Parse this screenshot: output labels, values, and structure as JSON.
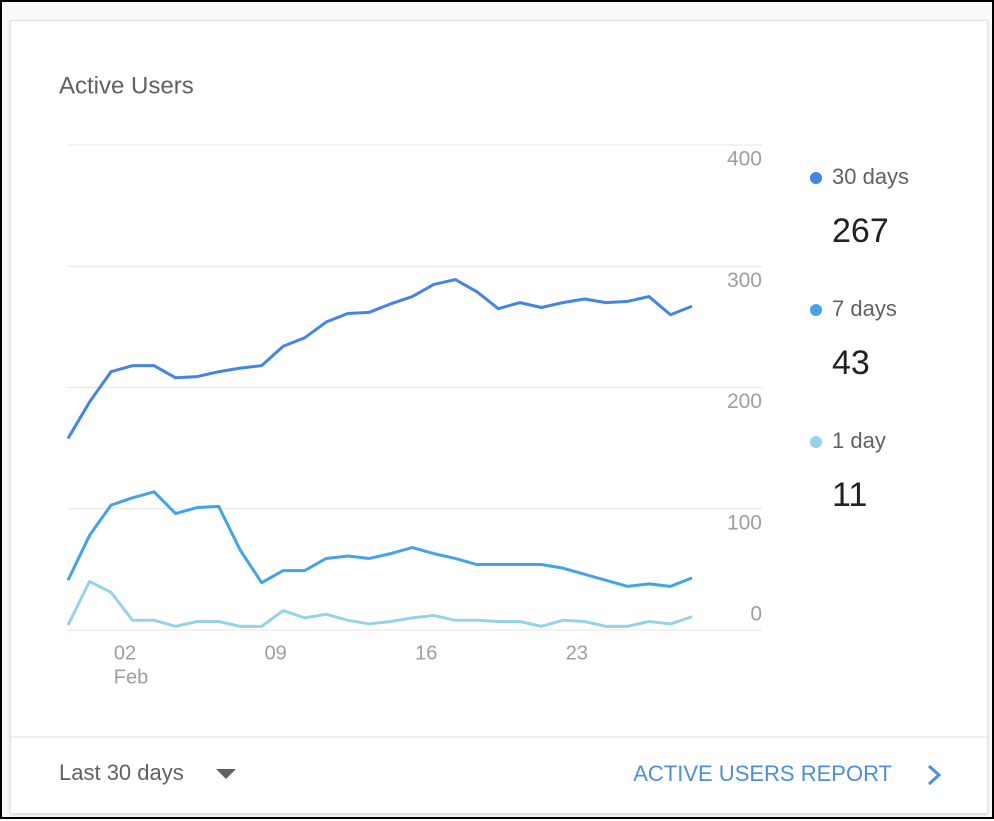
{
  "card": {
    "title": "Active Users",
    "footer": {
      "range": "Last 30 days",
      "link": "ACTIVE USERS REPORT"
    }
  },
  "chart_data": {
    "type": "line",
    "categories": [
      null,
      null,
      "02",
      null,
      null,
      null,
      null,
      null,
      null,
      "09",
      null,
      null,
      null,
      null,
      null,
      null,
      "16",
      null,
      null,
      null,
      null,
      null,
      null,
      "23",
      null,
      null,
      null,
      null,
      null,
      null
    ],
    "month_label": "Feb",
    "ylim": [
      0,
      400
    ],
    "yticks": [
      0,
      100,
      200,
      300,
      400
    ],
    "grid": true,
    "series": [
      {
        "name": "30 days",
        "color": "#4285e6",
        "total": 267,
        "values": [
          158,
          188,
          213,
          218,
          218,
          208,
          209,
          213,
          216,
          218,
          234,
          241,
          254,
          261,
          262,
          269,
          275,
          285,
          289,
          279,
          265,
          270,
          266,
          270,
          273,
          270,
          271,
          275,
          260,
          267
        ]
      },
      {
        "name": "7 days",
        "color": "#43a3ea",
        "total": 43,
        "values": [
          41,
          78,
          103,
          109,
          114,
          96,
          101,
          102,
          66,
          39,
          49,
          49,
          59,
          61,
          59,
          63,
          68,
          63,
          59,
          54,
          54,
          54,
          54,
          51,
          46,
          41,
          36,
          38,
          36,
          43
        ]
      },
      {
        "name": "1 day",
        "color": "#95d4e8",
        "total": 11,
        "values": [
          4,
          40,
          31,
          8,
          8,
          3,
          7,
          7,
          3,
          3,
          16,
          10,
          13,
          8,
          5,
          7,
          10,
          12,
          8,
          8,
          7,
          7,
          3,
          8,
          7,
          3,
          3,
          7,
          5,
          11
        ]
      }
    ]
  }
}
